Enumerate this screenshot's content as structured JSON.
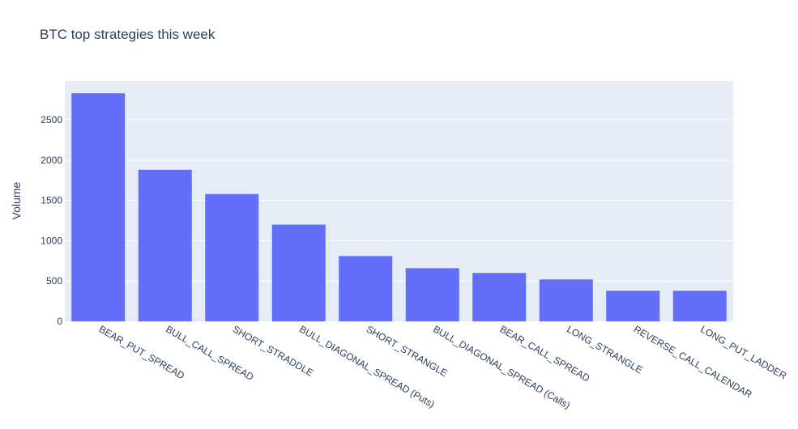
{
  "chart_data": {
    "type": "bar",
    "title": "BTC top strategies this week",
    "xlabel": "",
    "ylabel": "Volume",
    "categories": [
      "BEAR_PUT_SPREAD",
      "BULL_CALL_SPREAD",
      "SHORT_STRADDLE",
      "BULL_DIAGONAL_SPREAD (Puts)",
      "SHORT_STRANGLE",
      "BULL_DIAGONAL_SPREAD (Calls)",
      "BEAR_CALL_SPREAD",
      "LONG_STRANGLE",
      "REVERSE_CALL_CALENDAR",
      "LONG_PUT_LADDER"
    ],
    "values": [
      2830,
      1880,
      1580,
      1200,
      810,
      660,
      600,
      520,
      380,
      380
    ],
    "ylim": [
      0,
      2983
    ],
    "yticks": [
      0,
      500,
      1000,
      1500,
      2000,
      2500
    ],
    "grid": true,
    "colors": {
      "bar": "#636efa",
      "plot_bg": "#e5ecf6",
      "grid": "#ffffff",
      "text": "#2a3f5f"
    }
  }
}
